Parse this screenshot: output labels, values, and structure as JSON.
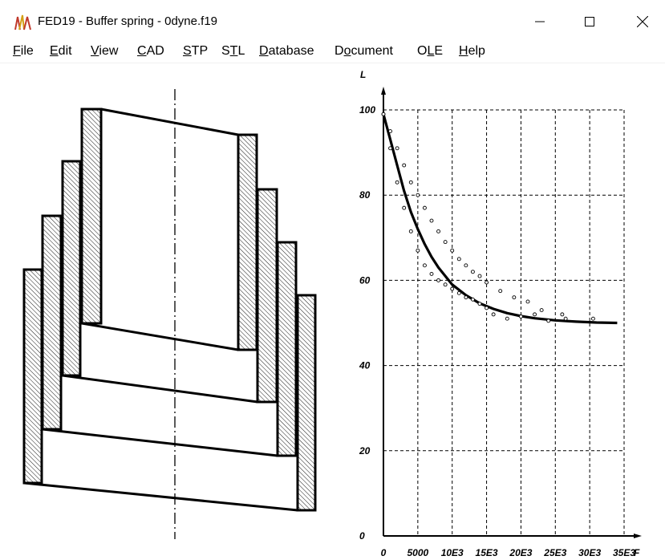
{
  "window": {
    "title": "FED19  -  Buffer spring  -  0dyne.f19",
    "controls": {
      "minimize": "minimize",
      "maximize": "maximize",
      "close": "close"
    }
  },
  "menu": [
    {
      "label": "File",
      "accel": "F",
      "rest": "ile"
    },
    {
      "label": "Edit",
      "accel": "E",
      "rest": "dit"
    },
    {
      "label": "View",
      "accel": "V",
      "rest": "iew"
    },
    {
      "label": "CAD",
      "accel": "C",
      "rest": "AD"
    },
    {
      "label": "STP",
      "accel": "S",
      "rest": "TP"
    },
    {
      "label": "STL",
      "pre": "S",
      "accel": "T",
      "rest": "L"
    },
    {
      "label": "Database",
      "accel": "D",
      "rest": "atabase"
    },
    {
      "label": "Document",
      "pre": "D",
      "accel": "o",
      "rest": "cument"
    },
    {
      "label": "OLE",
      "pre": "O",
      "accel": "L",
      "rest": "E"
    },
    {
      "label": "Help",
      "accel": "H",
      "rest": "elp"
    }
  ],
  "chart_data": {
    "type": "line",
    "ylabel": "L",
    "xlabel": "F",
    "xlim": [
      0,
      35000
    ],
    "ylim": [
      0,
      100
    ],
    "x_ticks": [
      "0",
      "5000",
      "10E3",
      "15E3",
      "20E3",
      "25E3",
      "30E3",
      "35E3"
    ],
    "y_ticks": [
      "0",
      "20",
      "40",
      "60",
      "80",
      "100"
    ],
    "grid": true,
    "series": [
      {
        "style": "solid-thick",
        "x": [
          0,
          1000,
          2000,
          3000,
          4000,
          5000,
          6000,
          7000,
          8000,
          10000,
          12000,
          14000,
          16000,
          18000,
          20000,
          22000,
          25000,
          28000,
          31000,
          34000
        ],
        "y": [
          99,
          93,
          87,
          81,
          76,
          72,
          68.5,
          65.5,
          63,
          59,
          56.5,
          54.6,
          53.3,
          52.3,
          51.6,
          51.1,
          50.6,
          50.3,
          50.1,
          50
        ]
      },
      {
        "style": "circles-upper",
        "x": [
          0,
          1000,
          2000,
          3000,
          4000,
          5000,
          6000,
          7000,
          8000,
          9000,
          10000,
          11000,
          12000,
          13000,
          14000,
          15000,
          17000,
          19000,
          21000,
          23000,
          26000,
          30500
        ],
        "y": [
          99,
          95,
          91,
          87,
          83,
          80,
          77,
          74,
          71.5,
          69,
          67,
          65,
          63.5,
          62,
          61,
          59.5,
          57.5,
          56,
          55,
          53,
          52,
          51
        ]
      },
      {
        "style": "circles-lower",
        "x": [
          0,
          1000,
          2000,
          3000,
          4000,
          5000,
          6000,
          7000,
          8000,
          9000,
          10000,
          11000,
          12000,
          13000,
          14000,
          15000,
          16000,
          18000,
          20000,
          22000,
          24000,
          26500
        ],
        "y": [
          99,
          91,
          83,
          77,
          71.5,
          67,
          63.5,
          61.5,
          60,
          59,
          58,
          57,
          56,
          55.5,
          54.5,
          53.5,
          52,
          51,
          51.5,
          52,
          50.5,
          51
        ]
      }
    ]
  }
}
